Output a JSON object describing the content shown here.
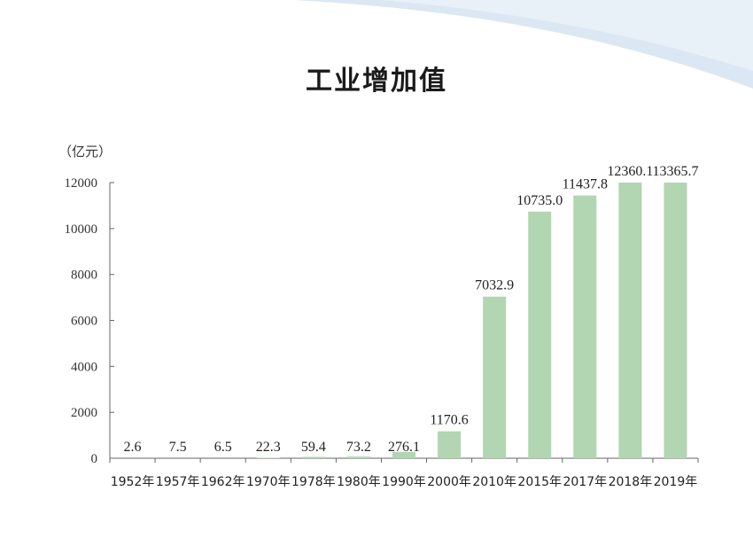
{
  "title": "工业增加值",
  "y_unit": "（亿元）",
  "colors": {
    "bar": "#b2d5b2",
    "axis": "#666666",
    "banner": "#d7e6f1"
  },
  "chart_data": {
    "type": "bar",
    "title": "工业增加值",
    "ylabel": "（亿元）",
    "xlabel": "",
    "categories": [
      "1952年",
      "1957年",
      "1962年",
      "1970年",
      "1978年",
      "1980年",
      "1990年",
      "2000年",
      "2010年",
      "2015年",
      "2017年",
      "2018年",
      "2019年"
    ],
    "values": [
      2.6,
      7.5,
      6.5,
      22.3,
      59.4,
      73.2,
      276.1,
      1170.6,
      7032.9,
      10735.0,
      11437.8,
      12360.1,
      13365.7
    ],
    "value_labels": [
      "2.6",
      "7.5",
      "6.5",
      "22.3",
      "59.4",
      "73.2",
      "276.1",
      "1170.6",
      "7032.9",
      "10735.0",
      "11437.8",
      "12360.1",
      "13365.7"
    ],
    "ylim": [
      0,
      12000
    ],
    "yticks": [
      0,
      2000,
      4000,
      6000,
      8000,
      10000,
      12000
    ],
    "grid": false,
    "legend": "none"
  }
}
